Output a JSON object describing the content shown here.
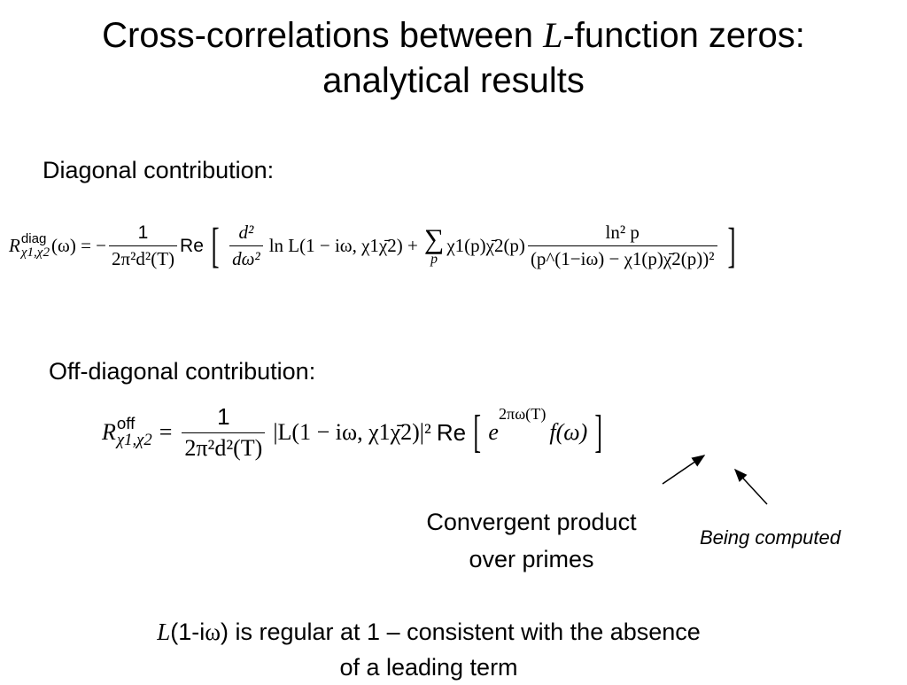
{
  "title": {
    "line1_pre": "Cross-correlations between ",
    "line1_italic": "L",
    "line1_post": "-function zeros:",
    "line2": "analytical results"
  },
  "diagonal": {
    "label": "Diagonal contribution:",
    "R": "R",
    "R_sup": "diag",
    "R_sub": "χ1,χ2",
    "lhs_rest": "(ω) = −",
    "frac1_num": "1",
    "frac1_den": "2π²d²(T)",
    "re": "Re",
    "lbracket": "[",
    "frac2_num": "d²",
    "frac2_den": "dω²",
    "term1": "ln L(1 − iω, χ1χ̄2) +",
    "sum": "∑",
    "sum_index": "p",
    "term2": "χ1(p)χ̄2(p)",
    "frac3_num": "ln² p",
    "frac3_den": "(p^(1−iω) − χ1(p)χ̄2(p))²",
    "rbracket": "]"
  },
  "offdiagonal": {
    "label": "Off-diagonal contribution:",
    "R": "R",
    "R_sup": "off",
    "R_sub": "χ1,χ2",
    "eq": "=",
    "frac_num": "1",
    "frac_den": "2π²d²(T)",
    "term1": "|L(1 − iω, χ1χ̄2)|²",
    "re": "Re",
    "lbracket": "[",
    "exp_base": "e",
    "exp_power": "2πω(T)",
    "term2": "f(ω)",
    "rbracket": "]"
  },
  "annotations": {
    "convergent_line1": "Convergent product",
    "convergent_line2": "over primes",
    "being_computed": "Being computed"
  },
  "bottom": {
    "L": "L",
    "pre": "(1-i",
    "omega": "ω",
    "post": ") is regular at 1 – consistent with the absence",
    "line2": "of a leading term"
  }
}
